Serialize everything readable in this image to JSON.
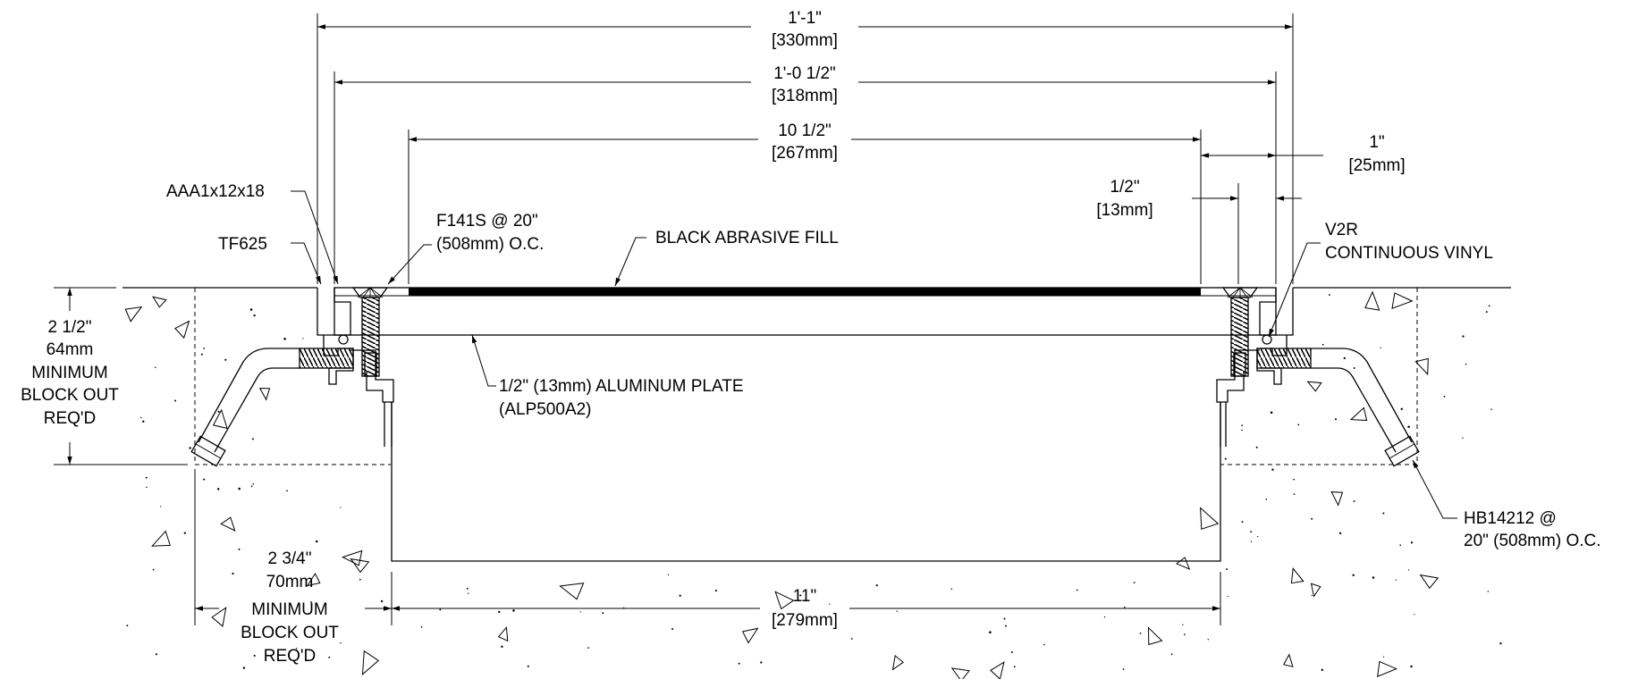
{
  "dimensions": {
    "overall": {
      "imperial": "1'-1\"",
      "metric": "[330mm]"
    },
    "frame": {
      "imperial": "1'-0 1/2\"",
      "metric": "[318mm]"
    },
    "plate": {
      "imperial": "10 1/2\"",
      "metric": "[267mm]"
    },
    "side_gap": {
      "imperial": "1\"",
      "metric": "[25mm]"
    },
    "screw_offset": {
      "imperial": "1/2\"",
      "metric": "[13mm]"
    },
    "depth": {
      "line1": "2 1/2\"",
      "line2": "64mm",
      "line3": "MINIMUM",
      "line4": "BLOCK OUT",
      "line5": "REQ'D"
    },
    "side_blockout": {
      "line1": "2 3/4\"",
      "line2": "70mm",
      "line3": "MINIMUM",
      "line4": "BLOCK OUT",
      "line5": "REQ'D"
    },
    "opening": {
      "imperial": "11\"",
      "metric": "[279mm]"
    }
  },
  "callouts": {
    "angle": "AAA1x12x18",
    "frame_part": "TF625",
    "screw": {
      "line1": "F141S @ 20\"",
      "line2": "(508mm) O.C."
    },
    "fill": "BLACK ABRASIVE FILL",
    "vinyl": {
      "line1": "V2R",
      "line2": "CONTINUOUS VINYL"
    },
    "plate": {
      "line1": "1/2\" (13mm) ALUMINUM PLATE",
      "line2": "(ALP500A2)"
    },
    "bolt": {
      "line1": "HB14212 @",
      "line2": "20\" (508mm) O.C."
    }
  }
}
